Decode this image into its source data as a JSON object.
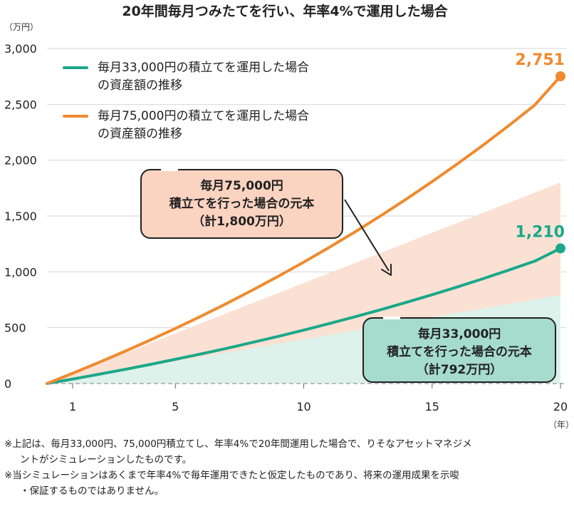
{
  "chart_data": {
    "type": "line",
    "title": "20年間毎月つみたてを行い、年率4%で運用した場合",
    "y_unit": "（万円）",
    "x_unit": "（年）",
    "ylim": [
      0,
      3000
    ],
    "xlim": [
      0,
      20
    ],
    "y_ticks": [
      "3,000",
      "2,500",
      "2,000",
      "1,500",
      "1,000",
      "500",
      "0"
    ],
    "y_tick_values": [
      3000,
      2500,
      2000,
      1500,
      1000,
      500,
      0
    ],
    "x_ticks": [
      "1",
      "5",
      "10",
      "15",
      "20"
    ],
    "x_tick_values": [
      1,
      5,
      10,
      15,
      20
    ],
    "grid": "horizontal",
    "legend_position": "top-left",
    "x": [
      0,
      1,
      2,
      3,
      4,
      5,
      6,
      7,
      8,
      9,
      10,
      11,
      12,
      13,
      14,
      15,
      16,
      17,
      18,
      19,
      20
    ],
    "series": [
      {
        "name_lines": [
          "毎月33,000円の積立てを運用した場合",
          "の資産額の推移"
        ],
        "color": "#1aa889",
        "values": [
          0,
          40,
          82,
          125,
          170,
          217,
          265,
          315,
          368,
          422,
          478,
          537,
          598,
          661,
          727,
          795,
          866,
          940,
          1017,
          1096,
          1210
        ],
        "end_label": "1,210"
      },
      {
        "name_lines": [
          "毎月75,000円の積立てを運用した場合",
          "の資産額の推移"
        ],
        "color": "#f08a2e",
        "values": [
          0,
          92,
          187,
          285,
          387,
          493,
          603,
          717,
          836,
          959,
          1087,
          1220,
          1358,
          1502,
          1652,
          1808,
          1969,
          2137,
          2312,
          2494,
          2751
        ],
        "end_label": "2,751"
      }
    ],
    "principal_areas": [
      {
        "color": "#fbe1d4",
        "values": [
          0,
          90,
          180,
          270,
          360,
          450,
          540,
          630,
          720,
          810,
          900,
          990,
          1080,
          1170,
          1260,
          1350,
          1440,
          1530,
          1620,
          1710,
          1800
        ],
        "label": [
          "毎月75,000円",
          "積立てを行った場合の元本",
          "（計1,800万円）"
        ],
        "box_color": "#fbd3c1"
      },
      {
        "color": "#dcf2ea",
        "values": [
          0,
          40,
          79,
          119,
          158,
          198,
          238,
          277,
          317,
          356,
          396,
          436,
          475,
          515,
          554,
          594,
          634,
          673,
          713,
          752,
          792
        ],
        "label": [
          "毎月33,000円",
          "積立てを行った場合の元本",
          "（計792万円）"
        ],
        "box_color": "#a6dccd"
      }
    ]
  },
  "notes": [
    "※上記は、毎月33,000円、75,000円積立てし、年率4%で20年間運用した場合で、りそなアセットマネジメ",
    "ントがシミュレーションしたものです。",
    "※当シミュレーションはあくまで年率4%で毎年運用できたと仮定したものであり、将来の運用成果を示唆",
    "・保証するものではありません。"
  ]
}
